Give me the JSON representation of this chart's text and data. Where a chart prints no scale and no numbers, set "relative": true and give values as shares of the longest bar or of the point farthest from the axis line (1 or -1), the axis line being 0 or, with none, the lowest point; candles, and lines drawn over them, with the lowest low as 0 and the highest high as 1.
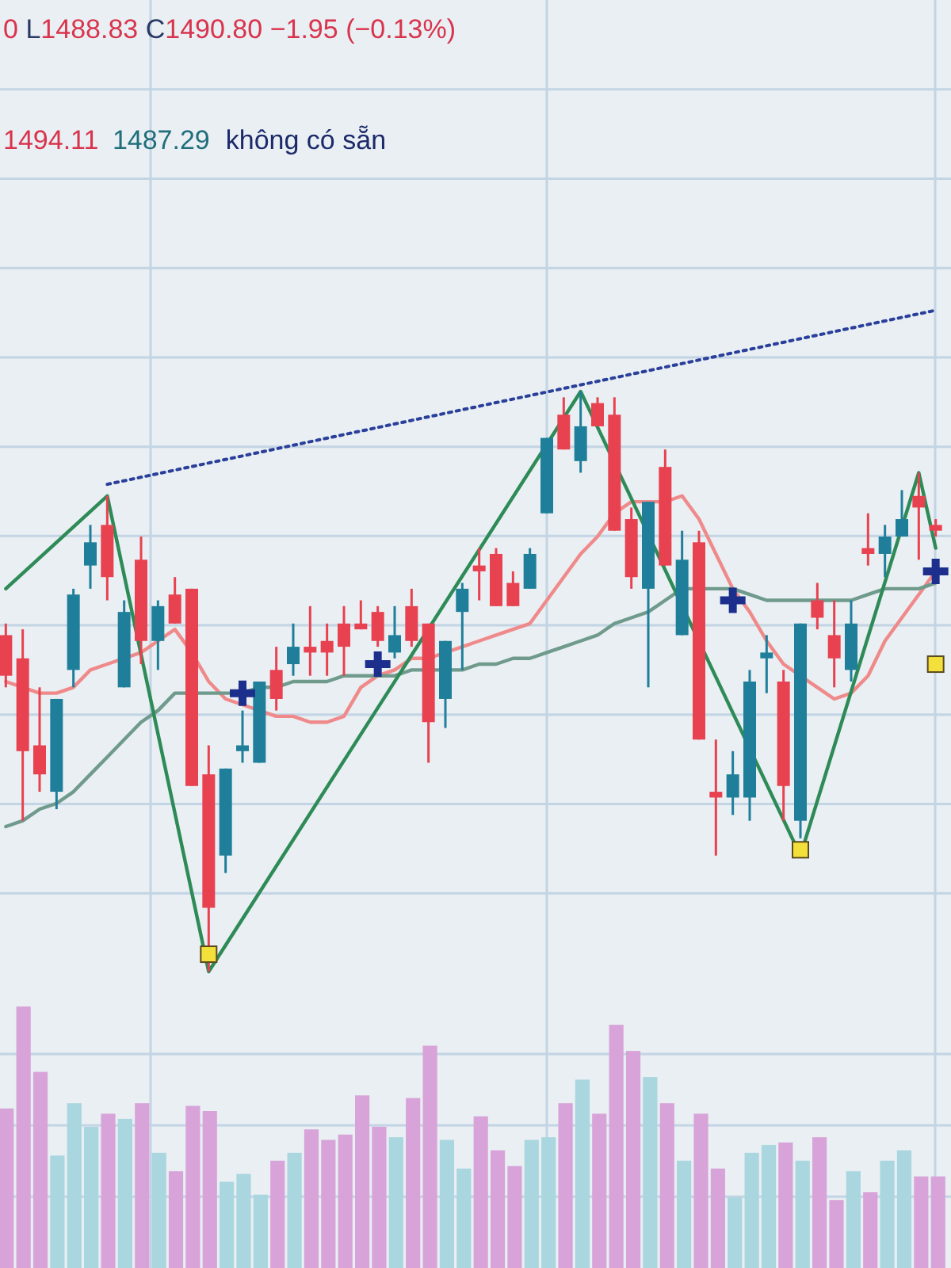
{
  "chart_data": [
    {
      "type": "candlestick",
      "relative": true,
      "title": "0 L1488.83 C1490.80 −1.95 (−0.13%)",
      "annotations": [
        "1494.11",
        "1487.29",
        "không có sẵn"
      ],
      "grid": true,
      "categories": [
        null,
        null,
        null,
        null,
        null,
        null,
        null,
        null,
        null,
        null,
        null,
        null,
        null,
        null,
        null,
        null,
        null,
        null,
        null,
        null,
        null,
        null,
        null,
        null,
        null,
        null,
        null,
        null,
        null,
        null,
        null,
        null,
        null,
        null,
        null,
        null,
        null,
        null,
        null,
        null,
        null,
        null,
        null,
        null,
        null,
        null,
        null,
        null,
        null,
        null,
        null,
        null,
        null,
        null,
        null,
        null
      ],
      "ohlc": [
        [
          0.58,
          0.6,
          0.49,
          0.51
        ],
        [
          0.54,
          0.59,
          0.26,
          0.38
        ],
        [
          0.39,
          0.49,
          0.31,
          0.34
        ],
        [
          0.31,
          0.47,
          0.28,
          0.47
        ],
        [
          0.52,
          0.66,
          0.49,
          0.65
        ],
        [
          0.7,
          0.77,
          0.66,
          0.74
        ],
        [
          0.77,
          0.82,
          0.64,
          0.68
        ],
        [
          0.49,
          0.64,
          0.49,
          0.62
        ],
        [
          0.71,
          0.75,
          0.53,
          0.57
        ],
        [
          0.57,
          0.64,
          0.52,
          0.63
        ],
        [
          0.65,
          0.68,
          0.6,
          0.6
        ],
        [
          0.66,
          0.66,
          0.32,
          0.32
        ],
        [
          0.34,
          0.39,
          0,
          0.11
        ],
        [
          0.2,
          0.35,
          0.17,
          0.35
        ],
        [
          0.38,
          0.45,
          0.36,
          0.39
        ],
        [
          0.36,
          0.5,
          0.36,
          0.5
        ],
        [
          0.52,
          0.56,
          0.45,
          0.47
        ],
        [
          0.53,
          0.6,
          0.51,
          0.56
        ],
        [
          0.56,
          0.63,
          0.51,
          0.55
        ],
        [
          0.57,
          0.6,
          0.51,
          0.55
        ],
        [
          0.6,
          0.63,
          0.51,
          0.56
        ],
        [
          0.6,
          0.64,
          0.59,
          0.59
        ],
        [
          0.62,
          0.63,
          0.56,
          0.57
        ],
        [
          0.55,
          0.63,
          0.54,
          0.58
        ],
        [
          0.63,
          0.66,
          0.56,
          0.57
        ],
        [
          0.6,
          0.6,
          0.36,
          0.43
        ],
        [
          0.47,
          0.57,
          0.42,
          0.57
        ],
        [
          0.62,
          0.67,
          0.52,
          0.66
        ],
        [
          0.7,
          0.73,
          0.64,
          0.69
        ],
        [
          0.72,
          0.73,
          0.63,
          0.63
        ],
        [
          0.67,
          0.69,
          0.63,
          0.63
        ],
        [
          0.66,
          0.73,
          0.66,
          0.72
        ],
        [
          0.79,
          0.92,
          0.79,
          0.92
        ],
        [
          0.96,
          0.99,
          0.9,
          0.9
        ],
        [
          0.88,
          1,
          0.86,
          0.94
        ],
        [
          0.98,
          0.99,
          0.94,
          0.94
        ],
        [
          0.96,
          0.99,
          0.76,
          0.76
        ],
        [
          0.78,
          0.8,
          0.66,
          0.68
        ],
        [
          0.66,
          0.81,
          0.49,
          0.81
        ],
        [
          0.87,
          0.9,
          0.7,
          0.7
        ],
        [
          0.58,
          0.76,
          0.58,
          0.71
        ],
        [
          0.74,
          0.76,
          0.4,
          0.4
        ],
        [
          0.31,
          0.4,
          0.2,
          0.3
        ],
        [
          0.3,
          0.38,
          0.27,
          0.34
        ],
        [
          0.3,
          0.52,
          0.26,
          0.5
        ],
        [
          0.54,
          0.58,
          0.48,
          0.55
        ],
        [
          0.5,
          0.52,
          0.26,
          0.32
        ],
        [
          0.26,
          0.6,
          0.23,
          0.6
        ],
        [
          0.64,
          0.67,
          0.59,
          0.61
        ],
        [
          0.58,
          0.64,
          0.49,
          0.54
        ],
        [
          0.52,
          0.64,
          0.5,
          0.6
        ],
        [
          0.73,
          0.79,
          0.7,
          0.72
        ],
        [
          0.72,
          0.77,
          0.68,
          0.75
        ],
        [
          0.75,
          0.83,
          0.75,
          0.78
        ],
        [
          0.82,
          0.86,
          0.71,
          0.8
        ],
        [
          0.77,
          0.78,
          0.75,
          0.76
        ]
      ],
      "colors": [
        "#e8414f",
        "#e8414f",
        "#e8414f",
        "#1f7f9a",
        "#1f7f9a",
        "#1f7f9a",
        "#e8414f",
        "#1f7f9a",
        "#e8414f",
        "#1f7f9a",
        "#e8414f",
        "#e8414f",
        "#e8414f",
        "#1f7f9a",
        "#1f7f9a",
        "#1f7f9a",
        "#e8414f",
        "#1f7f9a",
        "#e8414f",
        "#e8414f",
        "#e8414f",
        "#e8414f",
        "#e8414f",
        "#1f7f9a",
        "#e8414f",
        "#e8414f",
        "#1f7f9a",
        "#1f7f9a",
        "#e8414f",
        "#e8414f",
        "#e8414f",
        "#1f7f9a",
        "#1f7f9a",
        "#e8414f",
        "#1f7f9a",
        "#e8414f",
        "#e8414f",
        "#e8414f",
        "#1f7f9a",
        "#e8414f",
        "#1f7f9a",
        "#e8414f",
        "#e8414f",
        "#1f7f9a",
        "#1f7f9a",
        "#1f7f9a",
        "#e8414f",
        "#1f7f9a",
        "#e8414f",
        "#e8414f",
        "#1f7f9a",
        "#e8414f",
        "#1f7f9a",
        "#1f7f9a",
        "#e8414f",
        "#e8414f"
      ],
      "series": [
        {
          "type": "line",
          "color": "#f08a8a",
          "values": [
            0.5,
            0.49,
            0.48,
            0.48,
            0.49,
            0.52,
            0.53,
            null,
            0.55,
            0.57,
            0.59,
            0.55,
            0.5,
            0.47,
            0.46,
            null,
            0.44,
            0.44,
            0.43,
            0.43,
            0.44,
            0.49,
            0.51,
            0.52,
            0.54,
            0.54,
            0.55,
            0.56,
            0.57,
            0.58,
            0.59,
            0.6,
            0.64,
            0.68,
            0.72,
            0.75,
            0.79,
            0.81,
            0.81,
            0.81,
            0.82,
            0.78,
            0.72,
            0.66,
            0.62,
            0.57,
            0.53,
            0.51,
            0.49,
            0.47,
            0.48,
            0.51,
            0.57,
            0.61,
            0.65,
            0.69
          ]
        },
        {
          "type": "line",
          "color": "#6f9a8c",
          "values": [
            0.25,
            0.26,
            0.28,
            0.29,
            0.31,
            0.34,
            0.37,
            0.4,
            0.43,
            0.45,
            0.48,
            0.48,
            0.48,
            0.48,
            0.48,
            0.49,
            0.49,
            0.5,
            0.5,
            0.5,
            0.51,
            0.51,
            0.51,
            0.51,
            0.52,
            0.52,
            0.52,
            0.52,
            0.53,
            0.53,
            0.54,
            0.54,
            0.55,
            0.56,
            0.57,
            0.58,
            0.6,
            0.61,
            0.62,
            0.64,
            0.66,
            0.66,
            0.66,
            0.66,
            0.65,
            0.64,
            0.64,
            0.64,
            0.64,
            0.64,
            0.64,
            0.65,
            0.66,
            0.66,
            0.66,
            0.67
          ]
        },
        {
          "type": "line",
          "color": "#2e8b57",
          "values": [
            0.66,
            null,
            null,
            null,
            null,
            null,
            0.82,
            null,
            null,
            null,
            null,
            null,
            0,
            null,
            null,
            null,
            null,
            null,
            null,
            null,
            null,
            null,
            null,
            null,
            null,
            null,
            null,
            null,
            null,
            null,
            null,
            null,
            null,
            null,
            1,
            null,
            null,
            null,
            null,
            null,
            null,
            null,
            null,
            null,
            null,
            null,
            null,
            0.2,
            null,
            null,
            null,
            null,
            null,
            null,
            0.86,
            0.73
          ]
        },
        {
          "type": "line",
          "color": "#2a3f9a",
          "line_style": "dotted",
          "values": [
            null,
            null,
            null,
            null,
            null,
            null,
            0.84,
            null,
            null,
            null,
            null,
            null,
            null,
            null,
            null,
            null,
            null,
            null,
            null,
            null,
            null,
            null,
            null,
            null,
            null,
            null,
            null,
            null,
            null,
            null,
            null,
            null,
            null,
            null,
            null,
            null,
            null,
            null,
            null,
            null,
            null,
            null,
            null,
            null,
            null,
            null,
            null,
            null,
            null,
            null,
            null,
            null,
            null,
            null,
            null,
            1.14
          ]
        },
        {
          "type": "scatter",
          "marker": "cross",
          "color": "#1c2f8c",
          "values": [
            null,
            null,
            null,
            null,
            null,
            null,
            null,
            null,
            null,
            null,
            null,
            null,
            null,
            null,
            0.48,
            null,
            null,
            null,
            null,
            null,
            null,
            null,
            0.53,
            null,
            null,
            null,
            null,
            null,
            null,
            null,
            null,
            null,
            null,
            null,
            null,
            null,
            null,
            null,
            null,
            null,
            null,
            null,
            null,
            0.64,
            null,
            null,
            null,
            null,
            null,
            null,
            null,
            null,
            null,
            null,
            null,
            0.69
          ]
        },
        {
          "type": "scatter",
          "marker": "square",
          "color": "#f3e03a",
          "values": [
            null,
            null,
            null,
            null,
            null,
            null,
            null,
            null,
            null,
            null,
            null,
            null,
            0.03,
            null,
            null,
            null,
            null,
            null,
            null,
            null,
            null,
            null,
            null,
            null,
            null,
            null,
            null,
            null,
            null,
            null,
            null,
            null,
            null,
            null,
            null,
            null,
            null,
            null,
            null,
            null,
            null,
            null,
            null,
            null,
            null,
            null,
            null,
            0.21,
            null,
            null,
            null,
            null,
            null,
            null,
            null,
            0.53
          ]
        }
      ]
    },
    {
      "type": "bar",
      "relative": true,
      "grid": true,
      "categories": [
        null,
        null,
        null,
        null,
        null,
        null,
        null,
        null,
        null,
        null,
        null,
        null,
        null,
        null,
        null,
        null,
        null,
        null,
        null,
        null,
        null,
        null,
        null,
        null,
        null,
        null,
        null,
        null,
        null,
        null,
        null,
        null,
        null,
        null,
        null,
        null,
        null,
        null,
        null,
        null,
        null,
        null,
        null,
        null,
        null,
        null,
        null,
        null,
        null,
        null,
        null,
        null,
        null,
        null,
        null,
        null
      ],
      "values": [
        0.61,
        1,
        0.75,
        0.43,
        0.63,
        0.54,
        0.59,
        0.57,
        0.63,
        0.44,
        0.37,
        0.62,
        0.6,
        0.33,
        0.36,
        0.28,
        0.41,
        0.44,
        0.53,
        0.49,
        0.51,
        0.66,
        0.54,
        0.5,
        0.65,
        0.85,
        0.49,
        0.38,
        0.58,
        0.45,
        0.39,
        0.49,
        0.5,
        0.63,
        0.72,
        0.59,
        0.93,
        0.83,
        0.73,
        0.63,
        0.41,
        0.59,
        0.38,
        0.27,
        0.44,
        0.47,
        0.48,
        0.41,
        0.5,
        0.26,
        0.37,
        0.29,
        0.41,
        0.45,
        0.35,
        0.35
      ],
      "colors": [
        "#d8a3d8",
        "#d8a3d8",
        "#d8a3d8",
        "#a9d6df",
        "#a9d6df",
        "#a9d6df",
        "#d8a3d8",
        "#a9d6df",
        "#d8a3d8",
        "#a9d6df",
        "#d8a3d8",
        "#d8a3d8",
        "#d8a3d8",
        "#a9d6df",
        "#a9d6df",
        "#a9d6df",
        "#d8a3d8",
        "#a9d6df",
        "#d8a3d8",
        "#d8a3d8",
        "#d8a3d8",
        "#d8a3d8",
        "#d8a3d8",
        "#a9d6df",
        "#d8a3d8",
        "#d8a3d8",
        "#a9d6df",
        "#a9d6df",
        "#d8a3d8",
        "#d8a3d8",
        "#d8a3d8",
        "#a9d6df",
        "#a9d6df",
        "#d8a3d8",
        "#a9d6df",
        "#d8a3d8",
        "#d8a3d8",
        "#d8a3d8",
        "#a9d6df",
        "#d8a3d8",
        "#a9d6df",
        "#d8a3d8",
        "#d8a3d8",
        "#a9d6df",
        "#a9d6df",
        "#a9d6df",
        "#d8a3d8",
        "#a9d6df",
        "#d8a3d8",
        "#d8a3d8",
        "#a9d6df",
        "#d8a3d8",
        "#a9d6df",
        "#a9d6df",
        "#d8a3d8",
        "#d8a3d8"
      ]
    }
  ]
}
